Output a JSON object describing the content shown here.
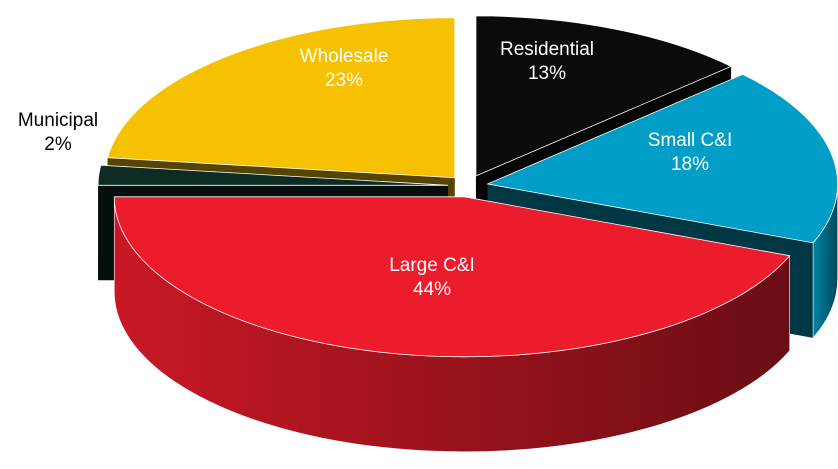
{
  "chart_data": {
    "type": "pie",
    "categories": [
      "Residential",
      "Small C&I",
      "Large C&I",
      "Municipal",
      "Wholesale"
    ],
    "values": [
      13,
      18,
      44,
      2,
      23
    ],
    "value_labels": [
      "13%",
      "18%",
      "44%",
      "2%",
      "23%"
    ],
    "colors": [
      "#0b0b0b",
      "#009ec6",
      "#ec1c2c",
      "#0e2b24",
      "#f5c100"
    ]
  }
}
